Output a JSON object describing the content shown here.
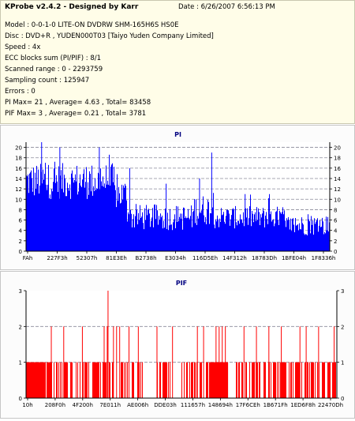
{
  "header": {
    "title": "KProbe v2.4.2 - Designed by Karr",
    "date": "Date : 6/26/2007 6:56:13 PM",
    "lines": [
      "Model : 0-0-1-0 LITE-ON DVDRW SHM-165H6S HS0E",
      "Disc : DVD+R , YUDEN000T03 [Taiyo Yuden Company Limited]",
      "Speed : 4x",
      "ECC blocks sum (PI/PIF) : 8/1",
      "Scanned range : 0 - 2293759",
      "Sampling count : 125947",
      "Errors : 0",
      "PI Max= 21 , Average= 4.63 , Total= 83458",
      "PIF Max= 3 , Average= 0.21 , Total= 3781"
    ]
  },
  "colors": {
    "pi": "#0000ff",
    "pif": "#ff0000",
    "title": "#000080",
    "grid": "#8a8a9a",
    "axis": "#000000"
  },
  "chart_data": [
    {
      "type": "bar",
      "title": "PI",
      "ylim": [
        0,
        21
      ],
      "yticks": [
        0,
        2,
        4,
        6,
        8,
        10,
        12,
        14,
        16,
        18,
        20
      ],
      "xtick_labels": [
        "FAh",
        "227F3h",
        "52307h",
        "81E3Eh",
        "B2738h",
        "E3034h",
        "116D5Eh",
        "14F312h",
        "18783Dh",
        "1BFE04h",
        "1F8336h"
      ],
      "grid": true,
      "series": [
        {
          "segments": [
            {
              "from": 0.0,
              "to": 0.29,
              "mean": 13.5,
              "spread": 3.5
            },
            {
              "from": 0.29,
              "to": 0.33,
              "mean": 11,
              "spread": 3
            },
            {
              "from": 0.33,
              "to": 0.55,
              "mean": 6.5,
              "spread": 2.5
            },
            {
              "from": 0.55,
              "to": 0.62,
              "mean": 8,
              "spread": 3
            },
            {
              "from": 0.62,
              "to": 0.85,
              "mean": 6.5,
              "spread": 2.2
            },
            {
              "from": 0.85,
              "to": 1.0,
              "mean": 5,
              "spread": 2
            }
          ],
          "spikes": [
            {
              "at": 0.05,
              "value": 21
            },
            {
              "at": 0.11,
              "value": 20
            },
            {
              "at": 0.24,
              "value": 20
            },
            {
              "at": 0.34,
              "value": 16
            },
            {
              "at": 0.46,
              "value": 13
            },
            {
              "at": 0.57,
              "value": 14
            },
            {
              "at": 0.61,
              "value": 19
            },
            {
              "at": 0.72,
              "value": 11
            },
            {
              "at": 0.8,
              "value": 11
            }
          ]
        }
      ]
    },
    {
      "type": "bar",
      "title": "PIF",
      "ylim": [
        0,
        3
      ],
      "yticks": [
        0,
        1,
        2,
        3
      ],
      "xtick_labels": [
        "10h",
        "208F0h",
        "4F200h",
        "7E011h",
        "AE006h",
        "DDE03h",
        "111657h",
        "148694h",
        "17F6CEh",
        "1B671Fh",
        "1ED6F8h",
        "22470Dh"
      ],
      "grid": true,
      "series": [
        {
          "ones_ranges": [
            [
              0.0,
              0.38
            ],
            [
              0.42,
              0.47
            ],
            [
              0.5,
              0.57
            ],
            [
              0.58,
              0.65
            ],
            [
              0.67,
              1.0
            ]
          ],
          "dense_bands": [
            [
              0.0,
              0.06
            ],
            [
              0.59,
              0.65
            ]
          ],
          "twos": [
            0.08,
            0.12,
            0.18,
            0.25,
            0.26,
            0.28,
            0.29,
            0.3,
            0.33,
            0.36,
            0.42,
            0.47,
            0.55,
            0.57,
            0.61,
            0.62,
            0.63,
            0.64,
            0.7,
            0.74,
            0.78,
            0.82,
            0.88,
            0.9,
            0.94,
            0.99
          ],
          "threes": [
            0.26
          ]
        }
      ]
    }
  ]
}
